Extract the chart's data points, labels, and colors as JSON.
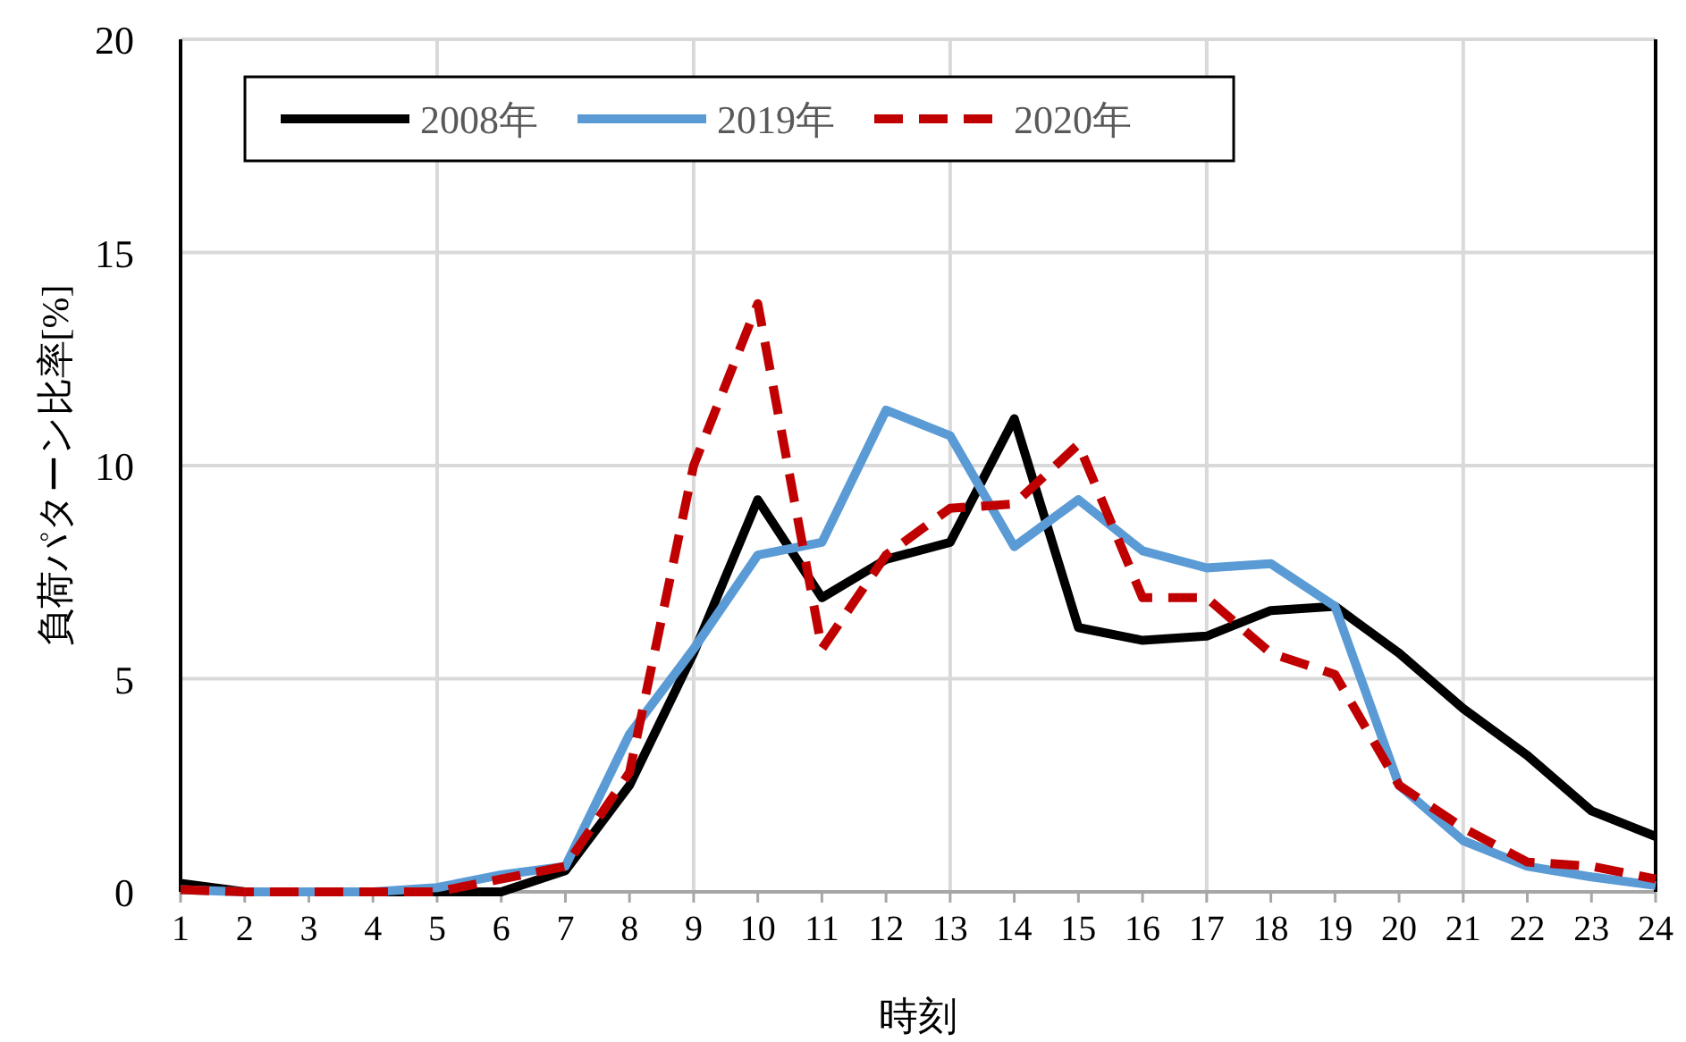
{
  "chart_data": {
    "type": "line",
    "xlabel": "時刻",
    "ylabel": "負荷パターン比率[%]",
    "x": [
      1,
      2,
      3,
      4,
      5,
      6,
      7,
      8,
      9,
      10,
      11,
      12,
      13,
      14,
      15,
      16,
      17,
      18,
      19,
      20,
      21,
      22,
      23,
      24
    ],
    "xlim": [
      1,
      24
    ],
    "xticks": [
      1,
      2,
      3,
      4,
      5,
      6,
      7,
      8,
      9,
      10,
      11,
      12,
      13,
      14,
      15,
      16,
      17,
      18,
      19,
      20,
      21,
      22,
      23,
      24
    ],
    "ylim": [
      0,
      20
    ],
    "yticks": [
      0,
      5,
      10,
      15,
      20
    ],
    "grid": true,
    "legend": "top left",
    "marker": "none",
    "series": [
      {
        "name": "2008年",
        "color": "#000000",
        "line_style": "solid",
        "values": [
          0.2,
          0,
          0,
          0,
          0,
          0,
          0.5,
          2.5,
          5.6,
          9.2,
          6.9,
          7.8,
          8.2,
          11.1,
          6.2,
          5.9,
          6.0,
          6.6,
          6.7,
          5.6,
          4.3,
          3.2,
          1.9,
          1.3
        ]
      },
      {
        "name": "2019年",
        "color": "#5b9bd5",
        "line_style": "solid",
        "values": [
          0.05,
          0,
          0,
          0,
          0.1,
          0.4,
          0.6,
          3.7,
          5.7,
          7.9,
          8.2,
          11.3,
          10.7,
          8.1,
          9.2,
          8.0,
          7.6,
          7.7,
          6.7,
          2.5,
          1.2,
          0.6,
          0.35,
          0.15
        ]
      },
      {
        "name": "2020年",
        "color": "#c00000",
        "line_style": "dashed",
        "values": [
          0.05,
          0,
          0,
          0,
          0,
          0.3,
          0.6,
          2.8,
          10.0,
          13.8,
          5.7,
          7.9,
          9.0,
          9.1,
          10.5,
          6.9,
          6.9,
          5.6,
          5.1,
          2.5,
          1.5,
          0.7,
          0.6,
          0.3
        ]
      }
    ]
  }
}
